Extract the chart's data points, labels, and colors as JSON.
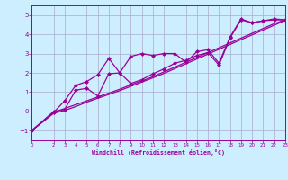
{
  "background_color": "#cceeff",
  "line_color": "#990099",
  "marker_color": "#990099",
  "grid_color": "#aaaacc",
  "xlabel": "Windchill (Refroidissement éolien,°C)",
  "xlabel_color": "#990099",
  "ylabel_color": "#990099",
  "xlim": [
    0,
    23
  ],
  "ylim": [
    -1.5,
    5.5
  ],
  "yticks": [
    -1,
    0,
    1,
    2,
    3,
    4,
    5
  ],
  "xticks": [
    0,
    2,
    3,
    4,
    5,
    6,
    7,
    8,
    9,
    10,
    11,
    12,
    13,
    14,
    15,
    16,
    17,
    18,
    19,
    20,
    21,
    22,
    23
  ],
  "series": [
    {
      "x": [
        0,
        2,
        3,
        4,
        5,
        6,
        7,
        8,
        9,
        10,
        11,
        12,
        13,
        14,
        15,
        16,
        17,
        18,
        19,
        20,
        21,
        22,
        23
      ],
      "y": [
        -1.0,
        -0.05,
        0.15,
        0.35,
        0.55,
        0.75,
        0.95,
        1.15,
        1.38,
        1.58,
        1.8,
        2.05,
        2.3,
        2.55,
        2.8,
        3.05,
        3.3,
        3.55,
        3.8,
        4.05,
        4.3,
        4.55,
        4.75
      ],
      "has_marker": false
    },
    {
      "x": [
        0,
        2,
        3,
        4,
        5,
        6,
        7,
        8,
        9,
        10,
        11,
        12,
        13,
        14,
        15,
        16,
        17,
        18,
        19,
        20,
        21,
        22,
        23
      ],
      "y": [
        -1.0,
        -0.1,
        0.05,
        0.25,
        0.48,
        0.68,
        0.88,
        1.08,
        1.3,
        1.52,
        1.74,
        1.97,
        2.22,
        2.47,
        2.72,
        2.97,
        3.22,
        3.47,
        3.72,
        3.97,
        4.22,
        4.47,
        4.72
      ],
      "has_marker": false
    },
    {
      "x": [
        0,
        2,
        3,
        4,
        5,
        6,
        7,
        8,
        9,
        10,
        11,
        12,
        13,
        14,
        15,
        16,
        17,
        18,
        19,
        20,
        21,
        22,
        23
      ],
      "y": [
        -1.0,
        -0.05,
        0.55,
        1.35,
        1.55,
        1.9,
        2.75,
        2.0,
        2.85,
        3.0,
        2.9,
        3.0,
        3.0,
        2.55,
        3.1,
        3.2,
        2.5,
        3.85,
        4.8,
        4.6,
        4.7,
        4.8,
        4.75
      ],
      "has_marker": true
    },
    {
      "x": [
        0,
        2,
        3,
        4,
        5,
        6,
        7,
        8,
        9,
        10,
        11,
        12,
        13,
        14,
        15,
        16,
        17,
        18,
        19,
        20,
        21,
        22,
        23
      ],
      "y": [
        -1.0,
        0.0,
        0.1,
        1.1,
        1.2,
        0.8,
        1.95,
        2.0,
        1.45,
        1.65,
        1.95,
        2.2,
        2.5,
        2.65,
        2.9,
        3.05,
        2.4,
        3.8,
        4.75,
        4.6,
        4.7,
        4.75,
        4.75
      ],
      "has_marker": true
    }
  ]
}
